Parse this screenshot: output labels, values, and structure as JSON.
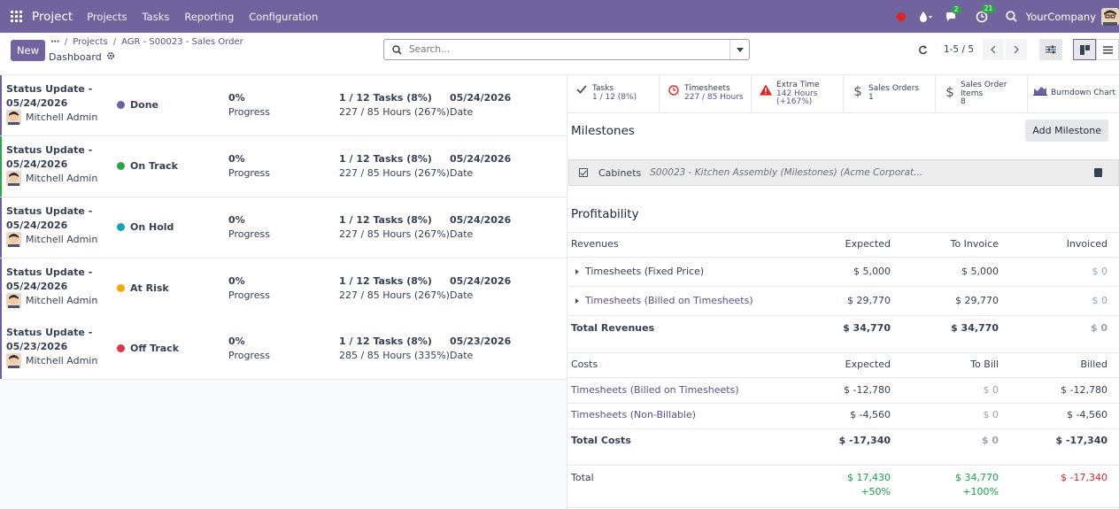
{
  "navbar": {
    "brand": "Project",
    "menus": [
      "Projects",
      "Tasks",
      "Reporting",
      "Configuration"
    ],
    "messages_badge": "2",
    "activity_badge": "21",
    "company": "YourCompany"
  },
  "control": {
    "new_label": "New",
    "breadcrumb": {
      "dots": "···",
      "projects": "Projects",
      "current": "AGR - S00023 - Sales Order",
      "page": "Dashboard"
    },
    "search_placeholder": "Search...",
    "pager": "1-5 / 5"
  },
  "updates": [
    {
      "title": "Status Update - 05/24/2026",
      "user": "Mitchell Admin",
      "status": "Done",
      "color": "#6c5fa3",
      "progress": "0%",
      "progress_label": "Progress",
      "tasks": "1 / 12 Tasks (8%)",
      "hours": "227 / 85 Hours (267%)",
      "date": "05/24/2026",
      "date_label": "Date"
    },
    {
      "title": "Status Update - 05/24/2026",
      "user": "Mitchell Admin",
      "status": "On Track",
      "color": "#28a745",
      "progress": "0%",
      "progress_label": "Progress",
      "tasks": "1 / 12 Tasks (8%)",
      "hours": "227 / 85 Hours (267%)",
      "date": "05/24/2026",
      "date_label": "Date"
    },
    {
      "title": "Status Update - 05/24/2026",
      "user": "Mitchell Admin",
      "status": "On Hold",
      "color": "#17a2b8",
      "progress": "0%",
      "progress_label": "Progress",
      "tasks": "1 / 12 Tasks (8%)",
      "hours": "227 / 85 Hours (267%)",
      "date": "05/24/2026",
      "date_label": "Date"
    },
    {
      "title": "Status Update - 05/24/2026",
      "user": "Mitchell Admin",
      "status": "At Risk",
      "color": "#f0ad00",
      "progress": "0%",
      "progress_label": "Progress",
      "tasks": "1 / 12 Tasks (8%)",
      "hours": "227 / 85 Hours (267%)",
      "date": "05/24/2026",
      "date_label": "Date"
    },
    {
      "title": "Status Update - 05/23/2026",
      "user": "Mitchell Admin",
      "status": "Off Track",
      "color": "#dc3545",
      "progress": "0%",
      "progress_label": "Progress",
      "tasks": "1 / 12 Tasks (8%)",
      "hours": "285 / 85 Hours (335%)",
      "date": "05/23/2026",
      "date_label": "Date"
    }
  ],
  "stats": [
    {
      "icon": "check-icon",
      "label": "Tasks",
      "value": "1 / 12 (8%)",
      "extra": ""
    },
    {
      "icon": "clock-icon",
      "label": "Timesheets",
      "value": "227 / 85 Hours",
      "extra": ""
    },
    {
      "icon": "warning-icon",
      "label": "Extra Time",
      "value": "142 Hours",
      "extra": "(+167%)"
    },
    {
      "icon": "dollar-icon",
      "label": "Sales Orders",
      "value": "1",
      "extra": ""
    },
    {
      "icon": "dollar-icon",
      "label": "Sales Order Items",
      "value": "8",
      "extra": ""
    },
    {
      "icon": "area-chart-icon",
      "label": "Burndown Chart",
      "value": "",
      "extra": ""
    }
  ],
  "milestones": {
    "title": "Milestones",
    "add_label": "Add Milestone",
    "item_name": "Cabinets",
    "item_sub": "S00023 - Kitchen Assembly (Milestones) (Acme Corporat..."
  },
  "profitability": {
    "title": "Profitability",
    "revenues_header": [
      "Revenues",
      "Expected",
      "To Invoice",
      "Invoiced"
    ],
    "revenues": [
      {
        "name": "Timesheets (Fixed Price)",
        "expected": "$ 5,000",
        "to_invoice": "$ 5,000",
        "invoiced": "$ 0"
      },
      {
        "name": "Timesheets (Billed on Timesheets)",
        "expected": "$ 29,770",
        "to_invoice": "$ 29,770",
        "invoiced": "$ 0"
      }
    ],
    "total_revenues": {
      "name": "Total Revenues",
      "expected": "$ 34,770",
      "to_invoice": "$ 34,770",
      "invoiced": "$ 0"
    },
    "costs_header": [
      "Costs",
      "Expected",
      "To Bill",
      "Billed"
    ],
    "costs": [
      {
        "name": "Timesheets (Billed on Timesheets)",
        "expected": "$ -12,780",
        "to_bill": "$ 0",
        "billed": "$ -12,780"
      },
      {
        "name": "Timesheets (Non-Billable)",
        "expected": "$ -4,560",
        "to_bill": "$ 0",
        "billed": "$ -4,560"
      }
    ],
    "total_costs": {
      "name": "Total Costs",
      "expected": "$ -17,340",
      "to_bill": "$ 0",
      "billed": "$ -17,340"
    },
    "total": {
      "name": "Total",
      "expected": "$ 17,430",
      "expected_pct": "+50%",
      "to_bill": "$ 34,770",
      "to_bill_pct": "+100%",
      "billed": "$ -17,340"
    }
  }
}
